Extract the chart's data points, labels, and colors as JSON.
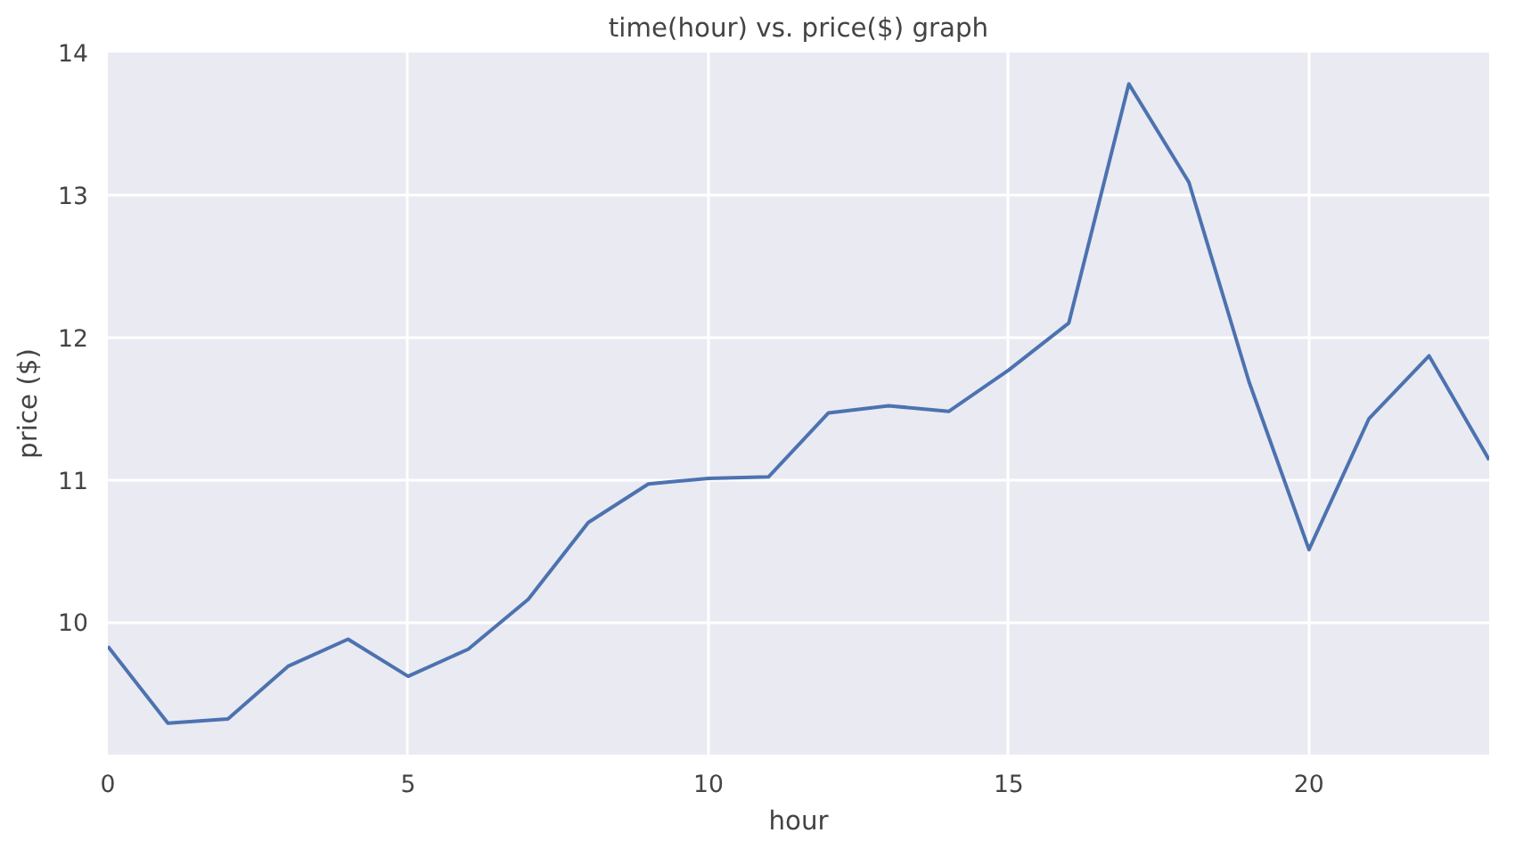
{
  "chart_data": {
    "type": "line",
    "title": "time(hour) vs. price($) graph",
    "xlabel": "hour",
    "ylabel": "price ($)",
    "x": [
      0,
      1,
      2,
      3,
      4,
      5,
      6,
      7,
      8,
      9,
      10,
      11,
      12,
      13,
      14,
      15,
      16,
      17,
      18,
      19,
      20,
      21,
      22,
      23
    ],
    "series": [
      {
        "color": "#4c72b0",
        "values": [
          9.83,
          9.29,
          9.32,
          9.69,
          9.88,
          9.62,
          9.81,
          10.16,
          10.7,
          10.97,
          11.01,
          11.02,
          11.47,
          11.52,
          11.48,
          11.77,
          12.1,
          13.78,
          13.09,
          11.69,
          10.51,
          11.43,
          11.87,
          11.14
        ]
      }
    ],
    "xlim": [
      0,
      23
    ],
    "ylim": [
      9.07,
      14
    ],
    "xticks": [
      0,
      5,
      10,
      15,
      20
    ],
    "yticks": [
      10,
      11,
      12,
      13,
      14
    ],
    "grid": true,
    "marker": "none",
    "line_style": "solid"
  }
}
